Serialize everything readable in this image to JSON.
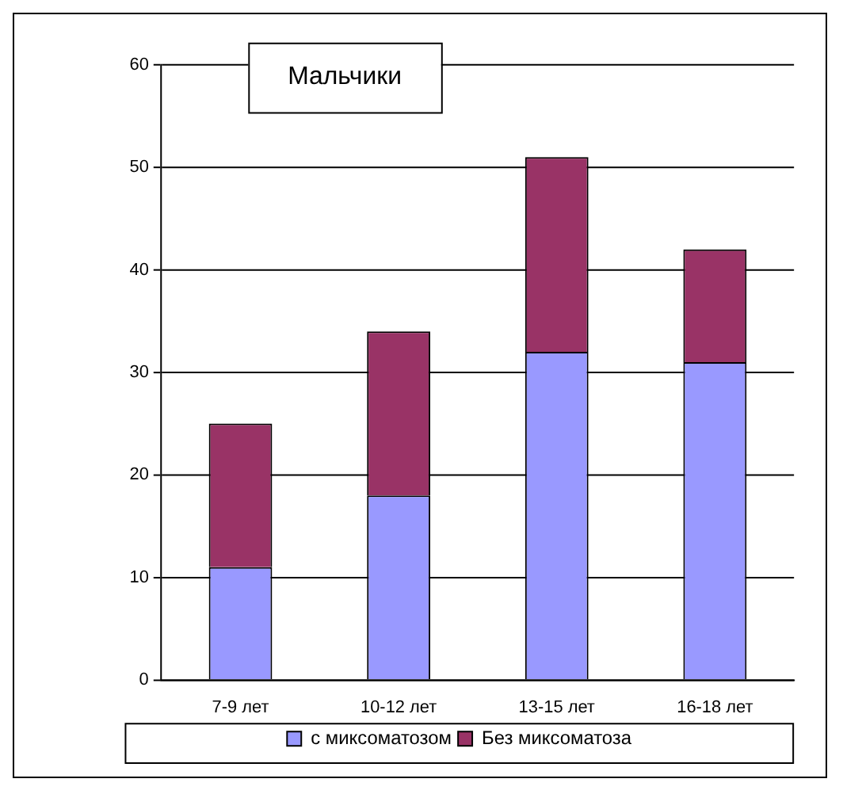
{
  "chart_data": {
    "type": "bar",
    "title": "Мальчики",
    "categories": [
      "7-9 лет",
      "10-12 лет",
      "13-15 лет",
      "16-18 лет"
    ],
    "stacked": true,
    "series": [
      {
        "name": "с миксоматозом",
        "color": "#9999ff",
        "values": [
          11,
          18,
          32,
          31
        ]
      },
      {
        "name": "Без миксоматоза",
        "color": "#993366",
        "values": [
          14,
          16,
          19,
          11
        ]
      }
    ],
    "ylim": [
      0,
      60
    ],
    "yticks": [
      0,
      10,
      20,
      30,
      40,
      50,
      60
    ],
    "grid": "y",
    "legend": "bottom"
  }
}
